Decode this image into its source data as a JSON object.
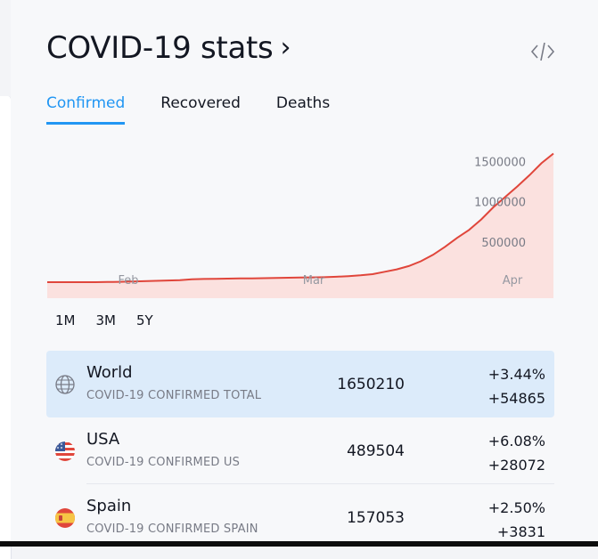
{
  "header": {
    "title": "COVID-19 stats",
    "chevron": "›",
    "embed_icon": "code-icon"
  },
  "tabs": [
    {
      "label": "Confirmed",
      "active": true
    },
    {
      "label": "Recovered",
      "active": false
    },
    {
      "label": "Deaths",
      "active": false
    }
  ],
  "chart_data": {
    "type": "area",
    "title": "",
    "xlabel": "",
    "ylabel": "",
    "x_ticks": [
      "Feb",
      "Mar",
      "Apr"
    ],
    "y_ticks": [
      500000,
      1000000,
      1500000
    ],
    "ylim": [
      0,
      1650000
    ],
    "line_color": "#e0463b",
    "fill_color": "#fbe1df",
    "series": [
      {
        "values": [
          0,
          0,
          0,
          0,
          0,
          2000,
          4000,
          8000,
          12000,
          17000,
          21000,
          24000,
          35000,
          40000,
          42000,
          44000,
          46000,
          48000,
          50000,
          52000,
          55000,
          58000,
          60000,
          62000,
          68000,
          75000,
          85000,
          100000,
          130000,
          160000,
          200000,
          260000,
          340000,
          440000,
          550000,
          650000,
          780000,
          930000,
          1060000,
          1190000,
          1330000,
          1480000,
          1600000
        ]
      }
    ]
  },
  "ranges": [
    "1M",
    "3M",
    "5Y"
  ],
  "rows": [
    {
      "name": "World",
      "desc": "COVID-19 CONFIRMED TOTAL",
      "value": "1650210",
      "pct": "+3.44%",
      "abs": "+54865",
      "icon": "globe-icon",
      "selected": true
    },
    {
      "name": "USA",
      "desc": "COVID-19 CONFIRMED US",
      "value": "489504",
      "pct": "+6.08%",
      "abs": "+28072",
      "icon": "us-flag-icon",
      "selected": false
    },
    {
      "name": "Spain",
      "desc": "COVID-19 CONFIRMED SPAIN",
      "value": "157053",
      "pct": "+2.50%",
      "abs": "+3831",
      "icon": "spain-flag-icon",
      "selected": false
    }
  ]
}
